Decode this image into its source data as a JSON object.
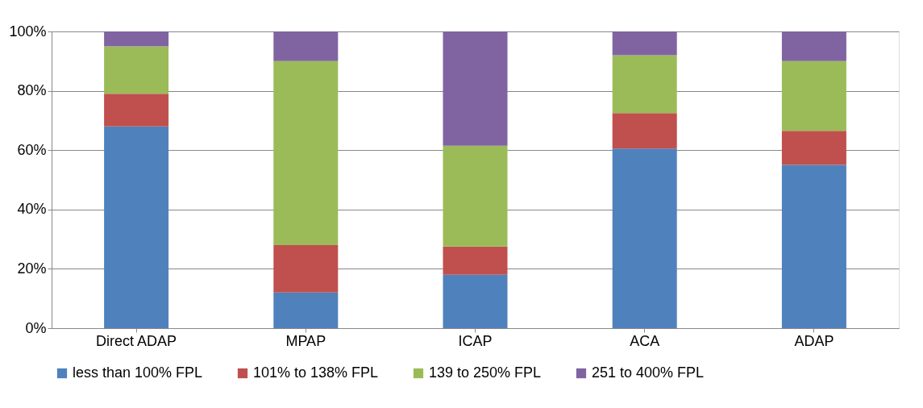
{
  "chart_data": {
    "type": "bar",
    "stacked": true,
    "categories": [
      "Direct ADAP",
      "MPAP",
      "ICAP",
      "ACA",
      "ADAP"
    ],
    "series": [
      {
        "name": "less than 100% FPL",
        "color": "#4f81bd",
        "values": [
          68,
          12,
          18,
          60.5,
          55
        ]
      },
      {
        "name": "101% to 138% FPL",
        "color": "#c0504d",
        "values": [
          11,
          16,
          9.5,
          12,
          11.5
        ]
      },
      {
        "name": "139 to 250% FPL",
        "color": "#9bbb59",
        "values": [
          16,
          62,
          34,
          19.5,
          23.5
        ]
      },
      {
        "name": "251 to 400% FPL",
        "color": "#8064a2",
        "values": [
          5,
          10,
          38.5,
          8,
          10
        ]
      }
    ],
    "ylim": [
      0,
      100
    ],
    "yticks": [
      {
        "value": 0,
        "label": "0%"
      },
      {
        "value": 20,
        "label": "20%"
      },
      {
        "value": 40,
        "label": "40%"
      },
      {
        "value": 60,
        "label": "60%"
      },
      {
        "value": 80,
        "label": "80%"
      },
      {
        "value": 100,
        "label": "100%"
      }
    ],
    "grid": "y",
    "legend": "bottom"
  }
}
